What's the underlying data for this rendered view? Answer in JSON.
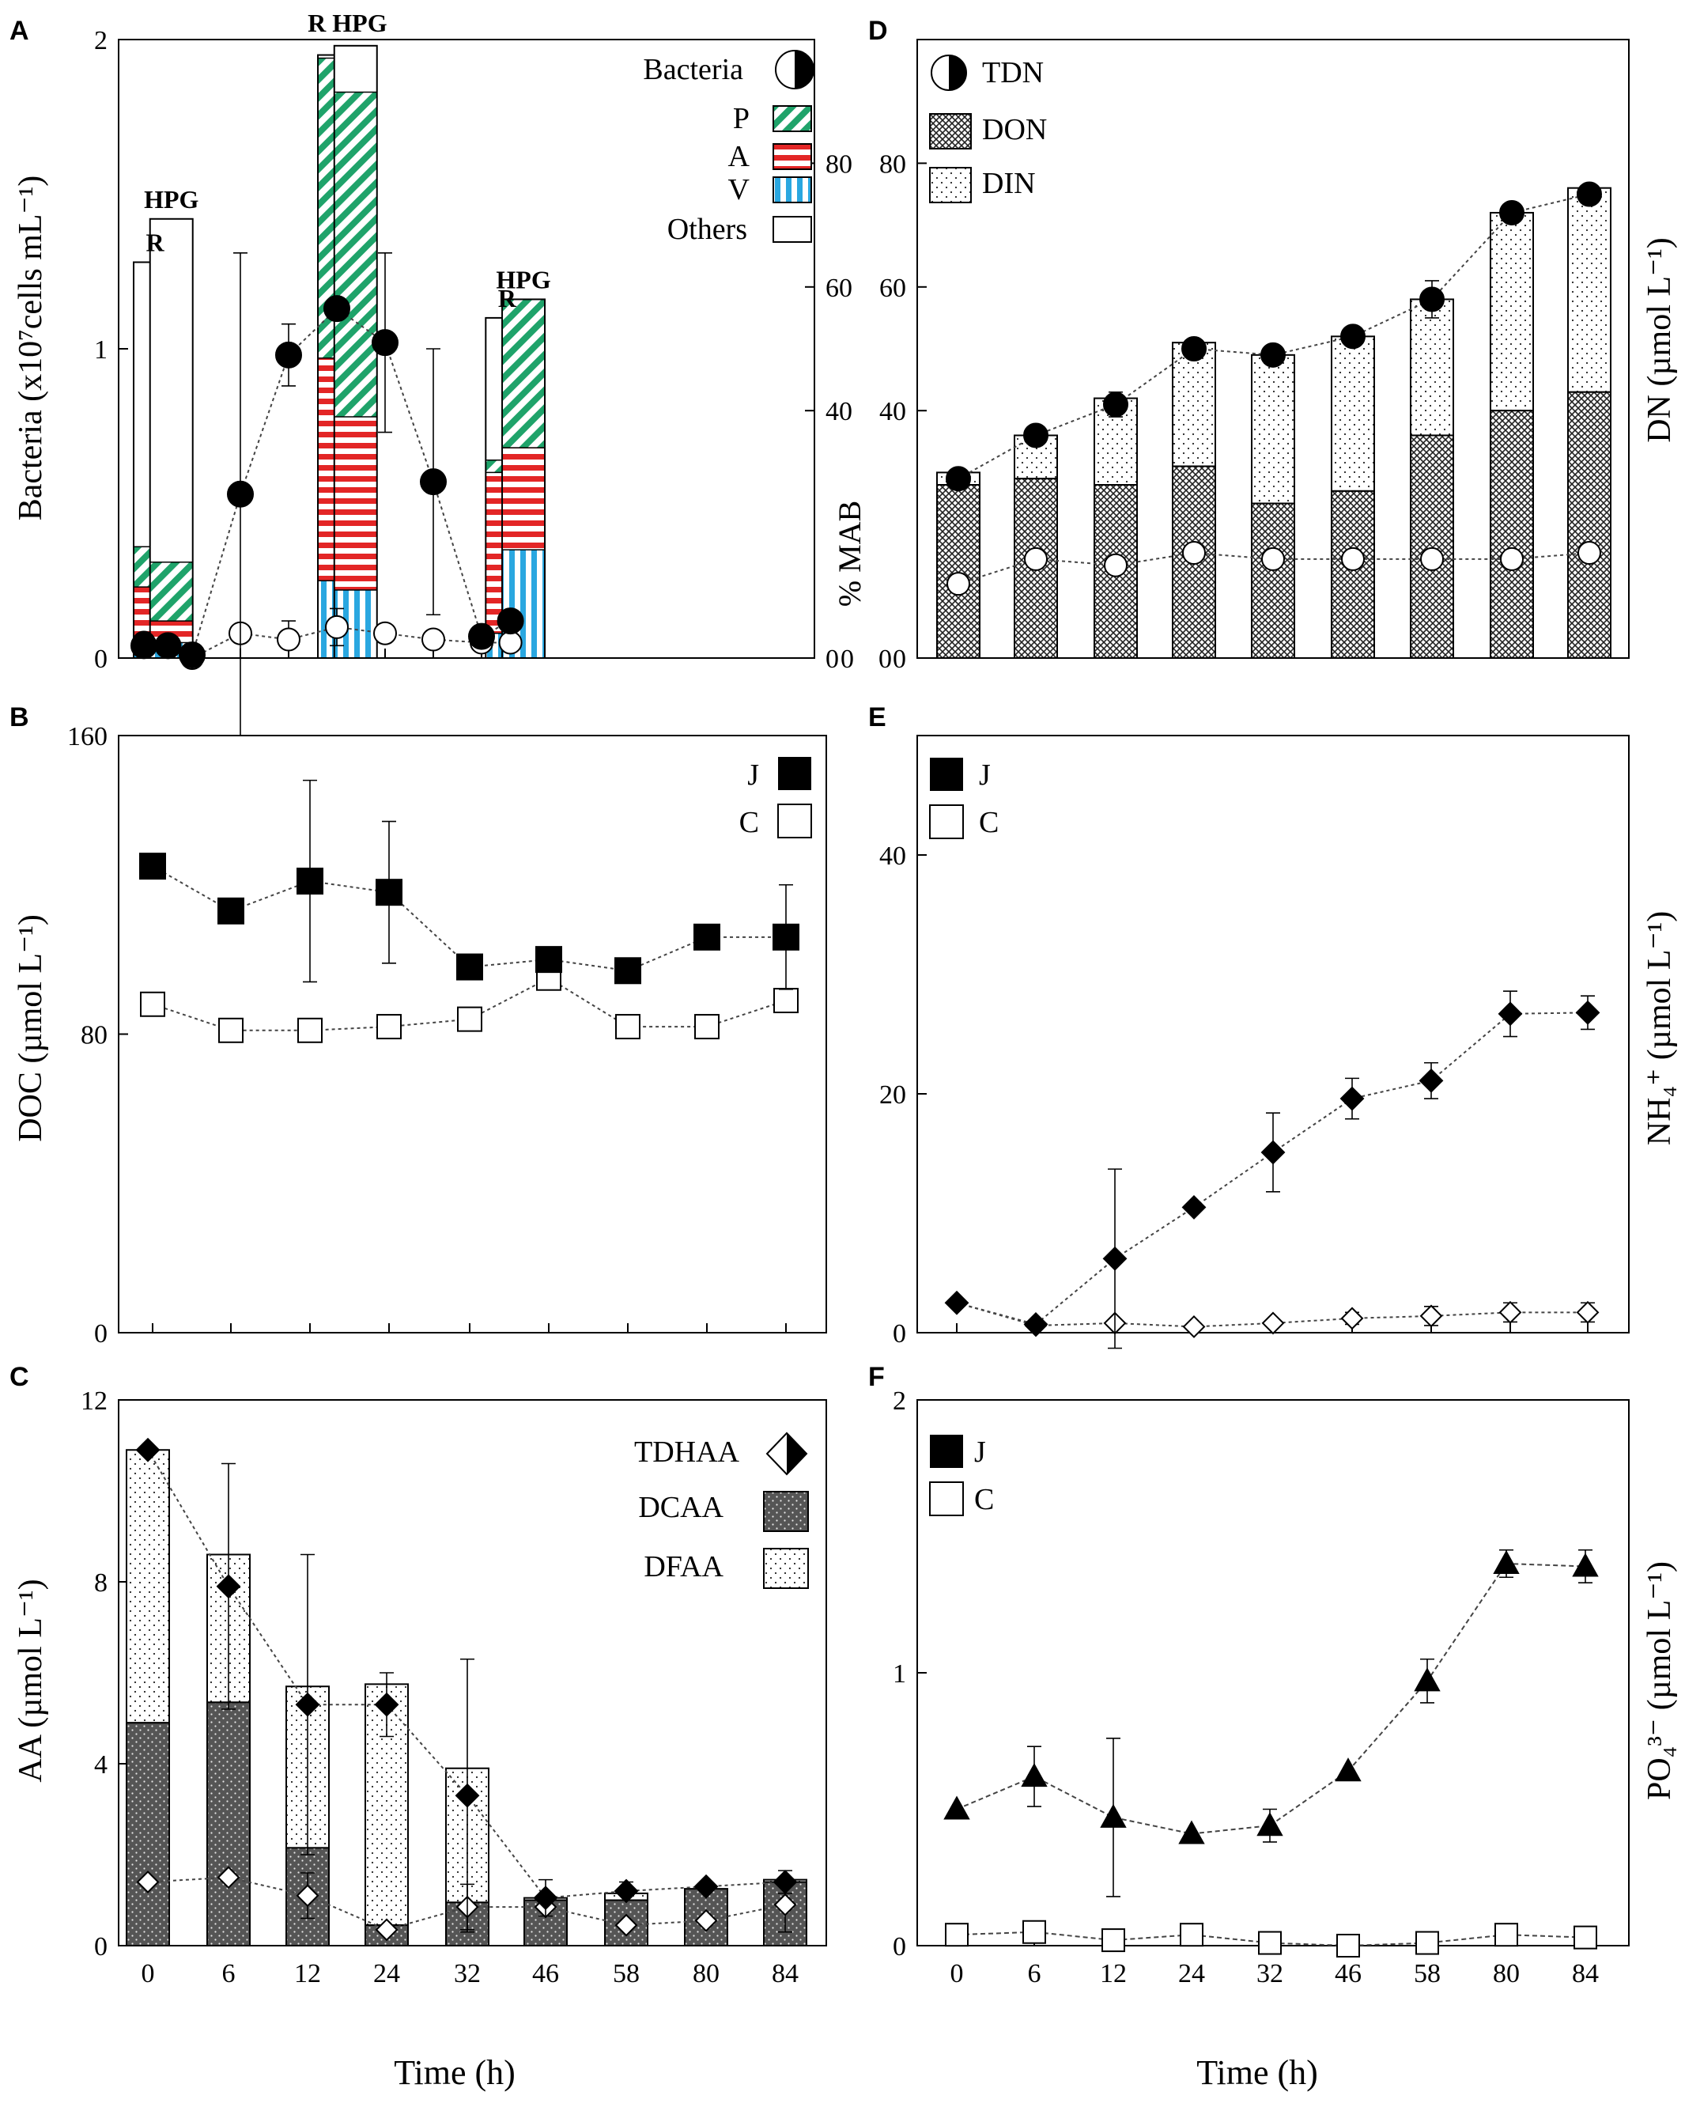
{
  "colors": {
    "P": "#1fa36a",
    "A": "#e32626",
    "V": "#2aa7e0"
  },
  "xlabel": "Time (h)",
  "chart_data": [
    {
      "id": "A",
      "panel_label": "A",
      "type": "bar",
      "ylabel_left": "Bacteria (x10⁷cells mL⁻¹)",
      "ylim_left": [
        0,
        2
      ],
      "yticks_left": [
        "0",
        "1",
        "2"
      ],
      "ylabel_right": "% MAB",
      "ylim_right": [
        0,
        100
      ],
      "yticks_right": [
        "0",
        "40",
        "60",
        "80"
      ],
      "legend": [
        {
          "key": "bacteria",
          "label": "Bacteria"
        },
        {
          "key": "P",
          "label": "P"
        },
        {
          "key": "A",
          "label": "A"
        },
        {
          "key": "V",
          "label": "V"
        },
        {
          "key": "others",
          "label": "Others"
        }
      ],
      "line_J": {
        "name": "Bacteria J",
        "x": [
          0,
          0.5,
          1,
          2,
          3,
          4,
          5,
          6,
          7,
          7.6
        ],
        "y": [
          0.04,
          0.04,
          0.01,
          0.53,
          0.98,
          1.13,
          1.02,
          0.57,
          0.07,
          0.12
        ],
        "err": [
          0,
          0,
          0,
          0.78,
          0.1,
          0,
          0.29,
          0.43,
          0,
          0
        ]
      },
      "line_C": {
        "name": "Bacteria C",
        "x": [
          0,
          1,
          2,
          3,
          4,
          5,
          6,
          7,
          7.6
        ],
        "y": [
          0.05,
          0.0,
          0.08,
          0.06,
          0.1,
          0.08,
          0.06,
          0.05,
          0.05
        ],
        "err": [
          0,
          0,
          0,
          0.06,
          0.06,
          0,
          0,
          0,
          0
        ]
      },
      "bars": [
        {
          "label": "R",
          "pos": 0,
          "V": 0.05,
          "A": 0.18,
          "P": 0.13,
          "total": 1.28
        },
        {
          "label": "HPG",
          "pos": 0.34,
          "V": 0.05,
          "A": 0.07,
          "P": 0.19,
          "total": 1.42
        },
        {
          "label": "R",
          "pos": 3.82,
          "V": 0.25,
          "A": 0.72,
          "P": 0.97,
          "total": 1.95
        },
        {
          "label": "HPG",
          "pos": 4.16,
          "V": 0.22,
          "A": 0.56,
          "P": 1.05,
          "total": 1.98
        },
        {
          "label": "R",
          "pos": 7.3,
          "V": 0.08,
          "A": 0.52,
          "P": 0.04,
          "total": 1.1
        },
        {
          "label": "HPG",
          "pos": 7.64,
          "V": 0.35,
          "A": 0.33,
          "P": 0.48,
          "total": 1.16
        }
      ],
      "bar_labels": [
        {
          "text": "R",
          "pos": 0
        },
        {
          "text": "HPG",
          "pos": 0.34
        },
        {
          "text": "R HPG",
          "pos": 3.99
        },
        {
          "text": "R",
          "pos": 7.3
        },
        {
          "text": "HPG",
          "pos": 7.64
        }
      ]
    },
    {
      "id": "B",
      "panel_label": "B",
      "type": "line",
      "ylabel": "DOC (µmol L⁻¹)",
      "ylim": [
        0,
        160
      ],
      "yticks": [
        "0",
        "80",
        "160"
      ],
      "legend": [
        {
          "key": "J",
          "label": "J"
        },
        {
          "key": "C",
          "label": "C"
        }
      ],
      "series": [
        {
          "name": "J",
          "values": [
            125,
            113,
            121,
            118,
            98,
            100,
            97,
            106,
            106
          ],
          "err": [
            0,
            0,
            27,
            19,
            0,
            2,
            2,
            0,
            14
          ]
        },
        {
          "name": "C",
          "values": [
            88,
            81,
            81,
            82,
            84,
            95,
            82,
            82,
            89
          ],
          "err": [
            0,
            0,
            0,
            0,
            0,
            0,
            0,
            0,
            0
          ]
        }
      ]
    },
    {
      "id": "C",
      "panel_label": "C",
      "type": "bar",
      "ylabel": "AA (µmol L⁻¹)",
      "ylim": [
        0,
        12
      ],
      "yticks": [
        "0",
        "4",
        "8",
        "12"
      ],
      "categories": [
        "0",
        "6",
        "12",
        "24",
        "32",
        "46",
        "58",
        "80",
        "84"
      ],
      "legend": [
        {
          "key": "TDHAA",
          "label": "TDHAA"
        },
        {
          "key": "DCAA",
          "label": "DCAA"
        },
        {
          "key": "DFAA",
          "label": "DFAA"
        }
      ],
      "series": [
        {
          "name": "DCAA",
          "values": [
            4.9,
            5.35,
            2.15,
            0.45,
            0.95,
            1.0,
            1.0,
            1.25,
            1.4
          ]
        },
        {
          "name": "TDHAA_total",
          "values": [
            10.9,
            8.6,
            5.7,
            5.75,
            3.9,
            1.05,
            1.15,
            1.25,
            1.45
          ]
        },
        {
          "name": "TDHAA J",
          "values": [
            10.9,
            7.9,
            5.3,
            5.3,
            3.3,
            1.05,
            1.2,
            1.3,
            1.4
          ],
          "err": [
            0,
            2.7,
            3.3,
            0.7,
            3.0,
            0.4,
            0.2,
            0,
            0.25
          ]
        },
        {
          "name": "TDHAA C",
          "values": [
            1.4,
            1.5,
            1.1,
            0.35,
            0.85,
            0.85,
            0.45,
            0.55,
            0.9
          ],
          "err": [
            0,
            0,
            0.5,
            0,
            0.5,
            0,
            0,
            0,
            0.6
          ]
        }
      ]
    },
    {
      "id": "D",
      "panel_label": "D",
      "type": "bar",
      "ylabel": "DN (µmol L⁻¹)",
      "ylim": [
        0,
        100
      ],
      "yticks": [
        "0",
        "40",
        "60",
        "80"
      ],
      "categories": [
        "0",
        "6",
        "12",
        "24",
        "32",
        "46",
        "58",
        "80",
        "84"
      ],
      "legend": [
        {
          "key": "TDN",
          "label": "TDN"
        },
        {
          "key": "DON",
          "label": "DON"
        },
        {
          "key": "DIN",
          "label": "DIN"
        }
      ],
      "series": [
        {
          "name": "DON",
          "values": [
            28,
            29,
            28,
            31,
            25,
            27,
            36,
            40,
            43
          ]
        },
        {
          "name": "TDN_total",
          "values": [
            30,
            36,
            42,
            51,
            49,
            52,
            58,
            72,
            76
          ]
        },
        {
          "name": "TDN J",
          "values": [
            29,
            36,
            41,
            50,
            49,
            52,
            58,
            72,
            75
          ],
          "err": [
            0,
            1,
            2,
            0,
            0,
            1,
            3,
            0,
            1
          ]
        },
        {
          "name": "TDN C",
          "values": [
            12,
            16,
            15,
            17,
            16,
            16,
            16,
            16,
            17
          ],
          "err": [
            0,
            0,
            0,
            0,
            0,
            0,
            0,
            0,
            0
          ]
        }
      ]
    },
    {
      "id": "E",
      "panel_label": "E",
      "type": "line",
      "ylabel": "NH₄⁺ (µmol L⁻¹)",
      "ylim": [
        0,
        50
      ],
      "yticks": [
        "0",
        "20",
        "40"
      ],
      "legend": [
        {
          "key": "J",
          "label": "J"
        },
        {
          "key": "C",
          "label": "C"
        }
      ],
      "series": [
        {
          "name": "J",
          "values": [
            2.5,
            0.7,
            6.2,
            10.5,
            15.1,
            19.6,
            21.1,
            26.7,
            26.8
          ],
          "err": [
            0,
            0,
            7.5,
            0,
            3.3,
            1.7,
            1.5,
            1.9,
            1.4
          ]
        },
        {
          "name": "C",
          "values": [
            2.5,
            0.6,
            0.8,
            0.5,
            0.8,
            1.2,
            1.4,
            1.7,
            1.7
          ],
          "err": [
            0,
            0,
            0,
            0,
            0,
            0.5,
            0.8,
            0.8,
            0.8
          ]
        }
      ]
    },
    {
      "id": "F",
      "panel_label": "F",
      "type": "line",
      "ylabel": "PO₄³⁻ (µmol L⁻¹)",
      "ylim": [
        0,
        2
      ],
      "yticks": [
        "0",
        "1",
        "2"
      ],
      "categories": [
        "0",
        "6",
        "12",
        "24",
        "32",
        "46",
        "58",
        "80",
        "84"
      ],
      "legend": [
        {
          "key": "J",
          "label": "J"
        },
        {
          "key": "C",
          "label": "C"
        }
      ],
      "series": [
        {
          "name": "J",
          "values": [
            0.5,
            0.62,
            0.47,
            0.41,
            0.44,
            0.64,
            0.97,
            1.4,
            1.39
          ],
          "err": [
            0,
            0.11,
            0.29,
            0,
            0.06,
            0,
            0.08,
            0.05,
            0.06
          ]
        },
        {
          "name": "C",
          "values": [
            0.04,
            0.05,
            0.02,
            0.04,
            0.01,
            0.0,
            0.01,
            0.04,
            0.03
          ],
          "err": [
            0,
            0,
            0,
            0,
            0,
            0,
            0,
            0,
            0
          ]
        }
      ]
    }
  ]
}
